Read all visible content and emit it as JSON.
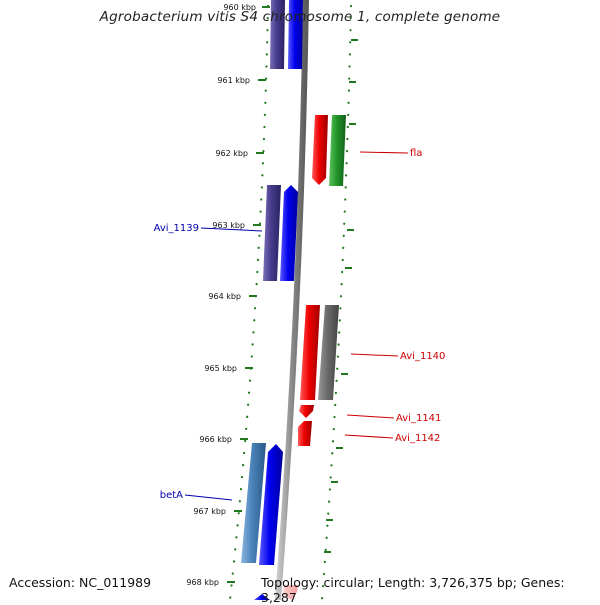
{
  "title": "Agrobacterium vitis S4 chromosome 1, complete genome",
  "footer": {
    "accession": "Accession: NC_011989",
    "summary": "Topology: circular; Length: 3,726,375 bp; Genes: 3,287"
  },
  "colors": {
    "forward_label": "#0000aa",
    "reverse_label": "#cc0000",
    "scale_green": "#1f7a1f",
    "backbone": "#8a8a8a"
  },
  "ticks": [
    "960 kbp",
    "961 kbp",
    "962 kbp",
    "963 kbp",
    "964 kbp",
    "965 kbp",
    "966 kbp",
    "967 kbp",
    "968 kbp"
  ],
  "labels": {
    "fla": "fla",
    "avi_1139": "Avi_1139",
    "avi_1140": "Avi_1140",
    "avi_1141": "Avi_1141",
    "avi_1142": "Avi_1142",
    "beta": "betA"
  }
}
